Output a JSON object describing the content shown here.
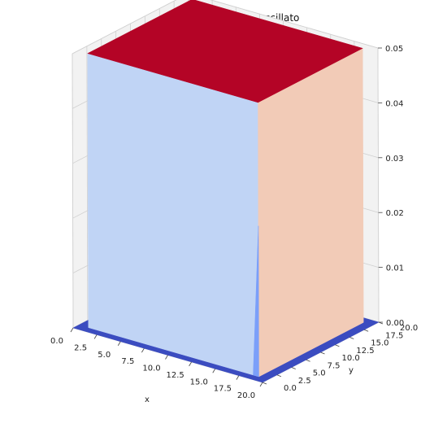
{
  "chart_data": {
    "type": "surface3d",
    "title": "VMC of 2-D harmonic oscillato",
    "xlabel": "x",
    "ylabel": "y",
    "zlabel": "",
    "xlim": [
      0,
      20
    ],
    "ylim": [
      0,
      20
    ],
    "zlim": [
      0,
      0.05
    ],
    "x_ticks": [
      "0.0",
      "2.5",
      "5.0",
      "7.5",
      "10.0",
      "12.5",
      "15.0",
      "17.5",
      "20.0"
    ],
    "y_ticks": [
      "0.0",
      "2.5",
      "5.0",
      "7.5",
      "10.0",
      "12.5",
      "15.0",
      "17.5",
      "20.0"
    ],
    "z_ticks": [
      "0.00",
      "0.01",
      "0.02",
      "0.03",
      "0.04",
      "0.05"
    ],
    "grid": true,
    "colormap": "coolwarm",
    "surface": {
      "description_values": "plateau",
      "plateau_x": [
        1,
        19
      ],
      "plateau_y": [
        1,
        19
      ],
      "plateau_z": 0.05,
      "base_z": 0
    },
    "colors": {
      "top": "#b40426",
      "front_left": "#c0d4f5",
      "front_left_edge": "#7b9ff9",
      "front_right": "#f2cbb7",
      "base": "#3b4cc0",
      "pane": "#f2f2f2",
      "pane_dark": "#e6e6e6",
      "grid": "#d0d0d0"
    }
  }
}
